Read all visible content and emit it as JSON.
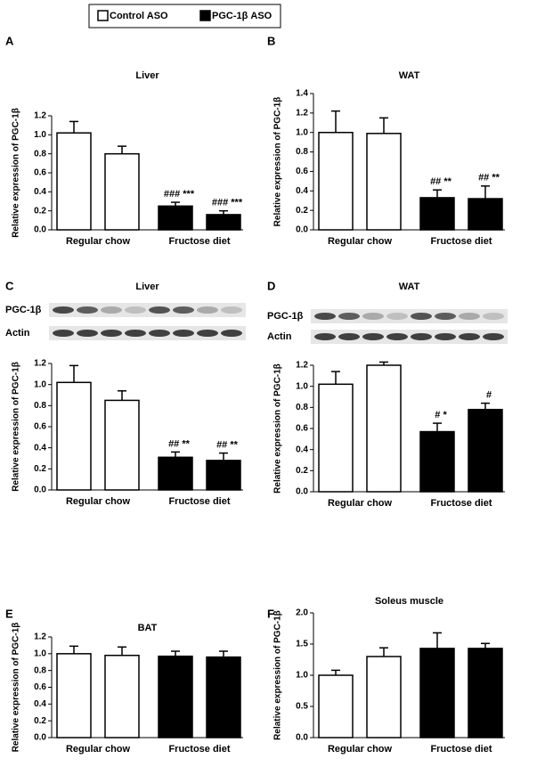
{
  "legend": [
    {
      "name": "Control ASO",
      "color": "#ffffff"
    },
    {
      "name": "PGC-1β ASO",
      "color": "#000000"
    }
  ],
  "chart_data": [
    {
      "type": "bar",
      "panel": "A",
      "title": "Liver",
      "ylabel": "Relative expression of PGC-1β",
      "categories": [
        "Regular chow",
        "Fructose diet"
      ],
      "series": [
        {
          "values": [
            1.02,
            0.8
          ],
          "errors": [
            0.12,
            0.08
          ]
        },
        {
          "values": [
            0.25,
            0.16
          ],
          "errors": [
            0.04,
            0.04
          ],
          "annotations": [
            "### ***",
            "### ***"
          ]
        }
      ],
      "ylim": [
        0,
        1.2
      ],
      "yticks": [
        {
          "value": 0,
          "label": "0.0"
        },
        0.2,
        0.4,
        0.6,
        0.8,
        {
          "value": 1,
          "label": "1.0"
        },
        1.2
      ]
    },
    {
      "type": "bar",
      "panel": "B",
      "title": "WAT",
      "ylabel": "Relative expression of PGC-1β",
      "categories": [
        "Regular chow",
        "Fructose diet"
      ],
      "series": [
        {
          "values": [
            1.0,
            0.99
          ],
          "errors": [
            0.22,
            0.16
          ]
        },
        {
          "values": [
            0.33,
            0.32
          ],
          "errors": [
            0.08,
            0.13
          ],
          "annotations": [
            "## **",
            "## **"
          ]
        }
      ],
      "ylim": [
        0,
        1.4
      ],
      "yticks": [
        {
          "value": 0,
          "label": "0.0"
        },
        0.2,
        0.4,
        0.6,
        0.8,
        {
          "value": 1,
          "label": "1.0"
        },
        1.2,
        1.4
      ]
    },
    {
      "type": "bar",
      "panel": "C",
      "title": "Liver",
      "ylabel": "Relative expression of PGC-1β",
      "blot_labels": [
        "PGC-1β",
        "Actin"
      ],
      "categories": [
        "Regular chow",
        "Fructose diet"
      ],
      "series": [
        {
          "values": [
            1.02,
            0.85
          ],
          "errors": [
            0.16,
            0.09
          ]
        },
        {
          "values": [
            0.31,
            0.28
          ],
          "errors": [
            0.05,
            0.07
          ],
          "annotations": [
            "## **",
            "## **"
          ]
        }
      ],
      "ylim": [
        0,
        1.2
      ],
      "yticks": [
        {
          "value": 0,
          "label": "0.0"
        },
        0.2,
        0.4,
        0.6,
        0.8,
        {
          "value": 1,
          "label": "1.0"
        },
        1.2
      ]
    },
    {
      "type": "bar",
      "panel": "D",
      "title": "WAT",
      "ylabel": "Relative expression of PGC-1β",
      "blot_labels": [
        "PGC-1β",
        "Actin"
      ],
      "categories": [
        "Regular chow",
        "Fructose diet"
      ],
      "series": [
        {
          "values": [
            1.02,
            1.2
          ],
          "errors": [
            0.12,
            0.03
          ]
        },
        {
          "values": [
            0.57,
            0.78
          ],
          "errors": [
            0.08,
            0.06
          ],
          "annotations": [
            "# *",
            "#"
          ]
        }
      ],
      "ylim": [
        0,
        1.2
      ],
      "yticks": [
        {
          "value": 0,
          "label": "0.0"
        },
        0.2,
        0.4,
        0.6,
        0.8,
        {
          "value": 1,
          "label": "1.0"
        },
        1.2
      ]
    },
    {
      "type": "bar",
      "panel": "E",
      "title": "BAT",
      "ylabel": "Relative expression of PGC-1β",
      "categories": [
        "Regular chow",
        "Fructose diet"
      ],
      "series": [
        {
          "values": [
            1.0,
            0.98
          ],
          "errors": [
            0.09,
            0.1
          ]
        },
        {
          "values": [
            0.97,
            0.96
          ],
          "errors": [
            0.06,
            0.07
          ]
        }
      ],
      "ylim": [
        0,
        1.2
      ],
      "yticks": [
        {
          "value": 0,
          "label": "0.0"
        },
        0.2,
        0.4,
        0.6,
        0.8,
        {
          "value": 1,
          "label": "1.0"
        },
        1.2
      ]
    },
    {
      "type": "bar",
      "panel": "F",
      "title": "Soleus muscle",
      "ylabel": "Relative expression of PGC-1β",
      "categories": [
        "Regular chow",
        "Fructose diet"
      ],
      "series": [
        {
          "values": [
            1.0,
            1.3
          ],
          "errors": [
            0.08,
            0.14
          ]
        },
        {
          "values": [
            1.43,
            1.43
          ],
          "errors": [
            0.25,
            0.08
          ]
        }
      ],
      "ylim": [
        0,
        2
      ],
      "yticks": [
        {
          "value": 0,
          "label": "0.0"
        },
        0.5,
        {
          "value": 1,
          "label": "1.0"
        },
        1.5,
        {
          "value": 2,
          "label": "2.0"
        }
      ]
    }
  ]
}
